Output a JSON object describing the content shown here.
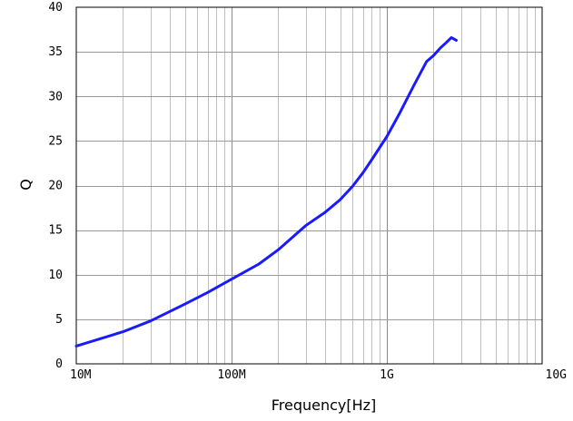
{
  "chart_data": {
    "type": "line",
    "title": "",
    "xlabel": "Frequency[Hz]",
    "ylabel": "Q",
    "x_scale": "log",
    "xlim": [
      10000000,
      10000000000
    ],
    "ylim": [
      0,
      40
    ],
    "x_ticks": [
      {
        "value": 10000000,
        "label": "10M"
      },
      {
        "value": 100000000,
        "label": "100M"
      },
      {
        "value": 1000000000,
        "label": "1G"
      },
      {
        "value": 10000000000,
        "label": "10G"
      }
    ],
    "y_ticks": [
      {
        "value": 0,
        "label": "0"
      },
      {
        "value": 5,
        "label": "5"
      },
      {
        "value": 10,
        "label": "10"
      },
      {
        "value": 15,
        "label": "15"
      },
      {
        "value": 20,
        "label": "20"
      },
      {
        "value": 25,
        "label": "25"
      },
      {
        "value": 30,
        "label": "30"
      },
      {
        "value": 35,
        "label": "35"
      },
      {
        "value": 40,
        "label": "40"
      }
    ],
    "grid": true,
    "line_color": "#1a1aff",
    "grid_color": "#c0c0c0",
    "series": [
      {
        "x": [
          10000000,
          20000000,
          30000000,
          50000000,
          70000000,
          100000000,
          150000000,
          200000000,
          300000000,
          400000000,
          500000000,
          600000000,
          700000000,
          800000000,
          1000000000,
          1200000000,
          1500000000,
          1800000000,
          2000000000,
          2200000000,
          2400000000,
          2600000000,
          2800000000
        ],
        "y": [
          2.0,
          3.6,
          4.8,
          6.7,
          8.0,
          9.5,
          11.2,
          12.8,
          15.5,
          17.0,
          18.4,
          19.9,
          21.4,
          22.9,
          25.5,
          28.0,
          31.3,
          33.9,
          34.6,
          35.4,
          36.0,
          36.6,
          36.3
        ]
      }
    ]
  }
}
